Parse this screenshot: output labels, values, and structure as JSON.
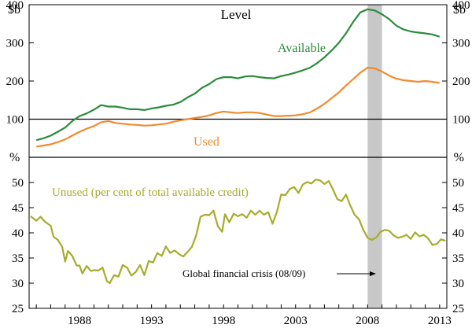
{
  "chart_data": [
    {
      "type": "line",
      "title": "Level",
      "ylabel": "$b",
      "ylim": [
        0,
        400
      ],
      "yticks": [
        100,
        200,
        300,
        400
      ],
      "reference_line": 100,
      "shaded_period": {
        "start": 2008.0,
        "end": 2009.0,
        "label": "Global financial crisis (08/09)"
      },
      "series": [
        {
          "name": "Available",
          "color": "#2a8c3a",
          "points": [
            [
              1985.0,
              45
            ],
            [
              1985.5,
              50
            ],
            [
              1986.0,
              57
            ],
            [
              1986.5,
              67
            ],
            [
              1987.0,
              78
            ],
            [
              1987.5,
              95
            ],
            [
              1988.0,
              108
            ],
            [
              1988.5,
              115
            ],
            [
              1989.0,
              125
            ],
            [
              1989.5,
              137
            ],
            [
              1990.0,
              133
            ],
            [
              1990.5,
              133
            ],
            [
              1991.0,
              130
            ],
            [
              1991.5,
              126
            ],
            [
              1992.0,
              126
            ],
            [
              1992.5,
              124
            ],
            [
              1993.0,
              128
            ],
            [
              1993.5,
              131
            ],
            [
              1994.0,
              135
            ],
            [
              1994.5,
              138
            ],
            [
              1995.0,
              145
            ],
            [
              1995.5,
              157
            ],
            [
              1996.0,
              167
            ],
            [
              1996.5,
              182
            ],
            [
              1997.0,
              192
            ],
            [
              1997.5,
              205
            ],
            [
              1998.0,
              210
            ],
            [
              1998.5,
              210
            ],
            [
              1999.0,
              207
            ],
            [
              1999.5,
              212
            ],
            [
              2000.0,
              213
            ],
            [
              2000.5,
              210
            ],
            [
              2001.0,
              208
            ],
            [
              2001.5,
              207
            ],
            [
              2002.0,
              213
            ],
            [
              2002.5,
              217
            ],
            [
              2003.0,
              222
            ],
            [
              2003.5,
              228
            ],
            [
              2004.0,
              235
            ],
            [
              2004.5,
              247
            ],
            [
              2005.0,
              262
            ],
            [
              2005.5,
              280
            ],
            [
              2006.0,
              300
            ],
            [
              2006.5,
              325
            ],
            [
              2007.0,
              355
            ],
            [
              2007.5,
              380
            ],
            [
              2008.0,
              388
            ],
            [
              2008.5,
              385
            ],
            [
              2009.0,
              375
            ],
            [
              2009.5,
              362
            ],
            [
              2010.0,
              345
            ],
            [
              2010.5,
              335
            ],
            [
              2011.0,
              330
            ],
            [
              2011.5,
              327
            ],
            [
              2012.0,
              325
            ],
            [
              2012.5,
              322
            ],
            [
              2013.0,
              316
            ]
          ]
        },
        {
          "name": "Used",
          "color": "#f28a2e",
          "points": [
            [
              1985.0,
              28
            ],
            [
              1985.5,
              31
            ],
            [
              1986.0,
              34
            ],
            [
              1986.5,
              40
            ],
            [
              1987.0,
              47
            ],
            [
              1987.5,
              57
            ],
            [
              1988.0,
              67
            ],
            [
              1988.5,
              75
            ],
            [
              1989.0,
              82
            ],
            [
              1989.5,
              92
            ],
            [
              1990.0,
              95
            ],
            [
              1990.5,
              90
            ],
            [
              1991.0,
              88
            ],
            [
              1991.5,
              86
            ],
            [
              1992.0,
              85
            ],
            [
              1992.5,
              83
            ],
            [
              1993.0,
              84
            ],
            [
              1993.5,
              86
            ],
            [
              1994.0,
              88
            ],
            [
              1994.5,
              93
            ],
            [
              1995.0,
              97
            ],
            [
              1995.5,
              100
            ],
            [
              1996.0,
              103
            ],
            [
              1996.5,
              106
            ],
            [
              1997.0,
              110
            ],
            [
              1997.5,
              116
            ],
            [
              1998.0,
              120
            ],
            [
              1998.5,
              118
            ],
            [
              1999.0,
              116
            ],
            [
              1999.5,
              118
            ],
            [
              2000.0,
              118
            ],
            [
              2000.5,
              116
            ],
            [
              2001.0,
              112
            ],
            [
              2001.5,
              108
            ],
            [
              2002.0,
              108
            ],
            [
              2002.5,
              109
            ],
            [
              2003.0,
              110
            ],
            [
              2003.5,
              113
            ],
            [
              2004.0,
              118
            ],
            [
              2004.5,
              128
            ],
            [
              2005.0,
              140
            ],
            [
              2005.5,
              155
            ],
            [
              2006.0,
              170
            ],
            [
              2006.5,
              188
            ],
            [
              2007.0,
              205
            ],
            [
              2007.5,
              222
            ],
            [
              2008.0,
              235
            ],
            [
              2008.5,
              233
            ],
            [
              2009.0,
              225
            ],
            [
              2009.5,
              214
            ],
            [
              2010.0,
              206
            ],
            [
              2010.5,
              202
            ],
            [
              2011.0,
              200
            ],
            [
              2011.5,
              198
            ],
            [
              2012.0,
              200
            ],
            [
              2012.5,
              198
            ],
            [
              2013.0,
              195
            ]
          ]
        }
      ]
    },
    {
      "type": "line",
      "ylabel": "%",
      "ylim": [
        25,
        55
      ],
      "yticks": [
        25,
        30,
        35,
        40,
        45,
        50
      ],
      "xlim": [
        1984.5,
        2013.5
      ],
      "xticks": [
        1988,
        1993,
        1998,
        2003,
        2008,
        2013
      ],
      "series": [
        {
          "name": "Unused (per cent of total available credit)",
          "color": "#a5ad2c",
          "points": [
            [
              1984.6,
              43.3
            ],
            [
              1985.0,
              42.4
            ],
            [
              1985.3,
              43.2
            ],
            [
              1985.6,
              42.2
            ],
            [
              1986.0,
              41.4
            ],
            [
              1986.2,
              39.2
            ],
            [
              1986.5,
              38.6
            ],
            [
              1986.8,
              37.2
            ],
            [
              1987.0,
              34.3
            ],
            [
              1987.2,
              36.4
            ],
            [
              1987.5,
              35.4
            ],
            [
              1987.8,
              33.5
            ],
            [
              1988.0,
              33.5
            ],
            [
              1988.2,
              31.9
            ],
            [
              1988.5,
              33.4
            ],
            [
              1988.8,
              32.4
            ],
            [
              1989.0,
              32.6
            ],
            [
              1989.3,
              32.5
            ],
            [
              1989.6,
              33.1
            ],
            [
              1989.9,
              30.4
            ],
            [
              1990.1,
              30.0
            ],
            [
              1990.4,
              31.6
            ],
            [
              1990.7,
              31.3
            ],
            [
              1991.0,
              33.6
            ],
            [
              1991.3,
              33.1
            ],
            [
              1991.6,
              31.5
            ],
            [
              1991.9,
              32.2
            ],
            [
              1992.2,
              33.6
            ],
            [
              1992.5,
              31.6
            ],
            [
              1992.8,
              34.4
            ],
            [
              1993.1,
              34.1
            ],
            [
              1993.4,
              36.0
            ],
            [
              1993.7,
              35.4
            ],
            [
              1994.0,
              37.3
            ],
            [
              1994.3,
              36.0
            ],
            [
              1994.6,
              36.5
            ],
            [
              1994.9,
              35.8
            ],
            [
              1995.2,
              35.3
            ],
            [
              1995.5,
              36.2
            ],
            [
              1995.8,
              37.2
            ],
            [
              1996.1,
              39.5
            ],
            [
              1996.4,
              43.2
            ],
            [
              1996.7,
              43.6
            ],
            [
              1997.0,
              43.5
            ],
            [
              1997.3,
              44.4
            ],
            [
              1997.6,
              41.3
            ],
            [
              1997.9,
              40.2
            ],
            [
              1998.1,
              43.7
            ],
            [
              1998.4,
              42.1
            ],
            [
              1998.7,
              43.8
            ],
            [
              1999.0,
              43.3
            ],
            [
              1999.3,
              43.7
            ],
            [
              1999.6,
              43.0
            ],
            [
              1999.9,
              44.4
            ],
            [
              2000.2,
              43.6
            ],
            [
              2000.5,
              44.4
            ],
            [
              2000.8,
              43.6
            ],
            [
              2001.1,
              44.1
            ],
            [
              2001.4,
              41.8
            ],
            [
              2001.7,
              44.1
            ],
            [
              2002.0,
              47.6
            ],
            [
              2002.3,
              47.5
            ],
            [
              2002.6,
              48.7
            ],
            [
              2002.9,
              49.1
            ],
            [
              2003.2,
              47.9
            ],
            [
              2003.5,
              49.6
            ],
            [
              2003.8,
              50.1
            ],
            [
              2004.1,
              49.8
            ],
            [
              2004.4,
              50.6
            ],
            [
              2004.7,
              50.4
            ],
            [
              2005.0,
              49.7
            ],
            [
              2005.3,
              50.3
            ],
            [
              2005.6,
              48.6
            ],
            [
              2005.9,
              46.7
            ],
            [
              2006.2,
              46.3
            ],
            [
              2006.5,
              47.6
            ],
            [
              2006.8,
              45.4
            ],
            [
              2007.1,
              43.6
            ],
            [
              2007.4,
              42.7
            ],
            [
              2007.7,
              40.6
            ],
            [
              2008.0,
              39.0
            ],
            [
              2008.3,
              38.6
            ],
            [
              2008.6,
              39.1
            ],
            [
              2008.9,
              40.2
            ],
            [
              2009.2,
              40.6
            ],
            [
              2009.5,
              40.4
            ],
            [
              2009.8,
              39.5
            ],
            [
              2010.1,
              39.0
            ],
            [
              2010.4,
              39.2
            ],
            [
              2010.7,
              39.6
            ],
            [
              2011.0,
              38.8
            ],
            [
              2011.3,
              40.1
            ],
            [
              2011.6,
              39.3
            ],
            [
              2011.9,
              39.6
            ],
            [
              2012.2,
              38.9
            ],
            [
              2012.5,
              37.6
            ],
            [
              2012.8,
              37.8
            ],
            [
              2013.1,
              38.7
            ],
            [
              2013.4,
              38.4
            ]
          ]
        }
      ],
      "annotation": {
        "text": "Global financial crisis (08/09)",
        "arrow_to_x": 2008.3
      }
    }
  ]
}
